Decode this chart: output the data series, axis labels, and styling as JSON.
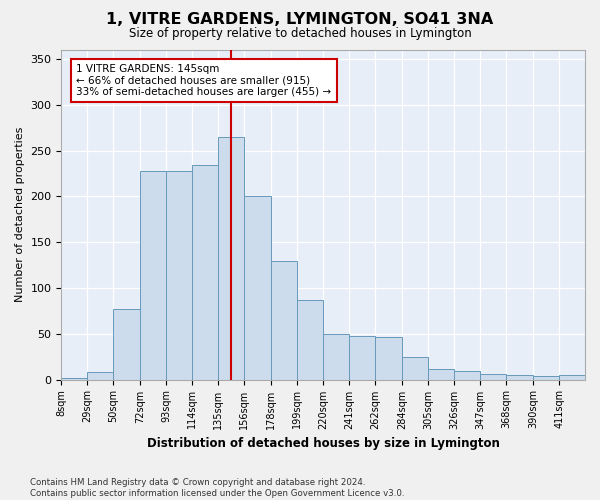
{
  "title": "1, VITRE GARDENS, LYMINGTON, SO41 3NA",
  "subtitle": "Size of property relative to detached houses in Lymington",
  "xlabel": "Distribution of detached houses by size in Lymington",
  "ylabel": "Number of detached properties",
  "bar_color": "#ccdcec",
  "bar_edge_color": "#6699bb",
  "background_color": "#e8eef8",
  "grid_color": "#ffffff",
  "vline_x": 145,
  "vline_color": "#cc0000",
  "annotation_line1": "1 VITRE GARDENS: 145sqm",
  "annotation_line2": "← 66% of detached houses are smaller (915)",
  "annotation_line3": "33% of semi-detached houses are larger (455) →",
  "annotation_box_color": "#ffffff",
  "annotation_box_edge_color": "#cc0000",
  "footer_text": "Contains HM Land Registry data © Crown copyright and database right 2024.\nContains public sector information licensed under the Open Government Licence v3.0.",
  "bin_edges": [
    8,
    29,
    50,
    72,
    93,
    114,
    135,
    156,
    178,
    199,
    220,
    241,
    262,
    284,
    305,
    326,
    347,
    368,
    390,
    411,
    432
  ],
  "bar_heights": [
    2,
    8,
    77,
    228,
    228,
    234,
    265,
    200,
    130,
    87,
    50,
    48,
    47,
    25,
    11,
    9,
    6,
    5,
    4,
    5
  ],
  "ylim": [
    0,
    360
  ],
  "yticks": [
    0,
    50,
    100,
    150,
    200,
    250,
    300,
    350
  ],
  "figsize": [
    6.0,
    5.0
  ],
  "dpi": 100
}
